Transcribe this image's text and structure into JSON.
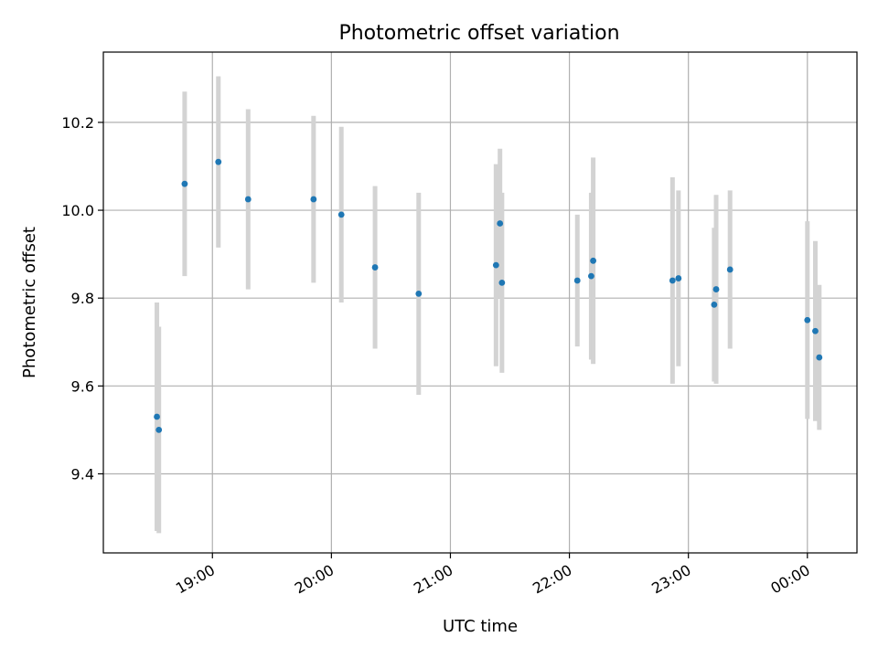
{
  "chart_data": {
    "type": "scatter",
    "title": "Photometric offset variation",
    "xlabel": "UTC time",
    "ylabel": "Photometric offset",
    "x_ticks": [
      "19:00",
      "20:00",
      "21:00",
      "22:00",
      "23:00",
      "00:00"
    ],
    "y_ticks": [
      "9.4",
      "9.6",
      "9.8",
      "10.0",
      "10.2"
    ],
    "xlim": [
      "18:05",
      "00:25"
    ],
    "ylim": [
      9.22,
      10.36
    ],
    "grid": true,
    "colors": {
      "point": "#1f77b4",
      "errorbar": "#d3d3d3"
    },
    "points": [
      {
        "x": "18:32",
        "y": 9.53,
        "err": 0.26
      },
      {
        "x": "18:33",
        "y": 9.5,
        "err": 0.235
      },
      {
        "x": "18:46",
        "y": 10.06,
        "err": 0.21
      },
      {
        "x": "19:03",
        "y": 10.11,
        "err": 0.195
      },
      {
        "x": "19:18",
        "y": 10.025,
        "err": 0.205
      },
      {
        "x": "19:51",
        "y": 10.025,
        "err": 0.19
      },
      {
        "x": "20:05",
        "y": 9.99,
        "err": 0.2
      },
      {
        "x": "20:22",
        "y": 9.87,
        "err": 0.185
      },
      {
        "x": "20:44",
        "y": 9.81,
        "err": 0.23
      },
      {
        "x": "21:23",
        "y": 9.875,
        "err": 0.23
      },
      {
        "x": "21:25",
        "y": 9.97,
        "err": 0.17
      },
      {
        "x": "21:26",
        "y": 9.835,
        "err": 0.205
      },
      {
        "x": "22:04",
        "y": 9.84,
        "err": 0.15
      },
      {
        "x": "22:11",
        "y": 9.85,
        "err": 0.19
      },
      {
        "x": "22:12",
        "y": 9.885,
        "err": 0.235
      },
      {
        "x": "22:52",
        "y": 9.84,
        "err": 0.235
      },
      {
        "x": "22:55",
        "y": 9.845,
        "err": 0.2
      },
      {
        "x": "23:13",
        "y": 9.785,
        "err": 0.175
      },
      {
        "x": "23:14",
        "y": 9.82,
        "err": 0.215
      },
      {
        "x": "23:21",
        "y": 9.865,
        "err": 0.18
      },
      {
        "x": "00:00",
        "y": 9.75,
        "err": 0.225
      },
      {
        "x": "00:04",
        "y": 9.725,
        "err": 0.205
      },
      {
        "x": "00:06",
        "y": 9.665,
        "err": 0.165
      }
    ]
  }
}
